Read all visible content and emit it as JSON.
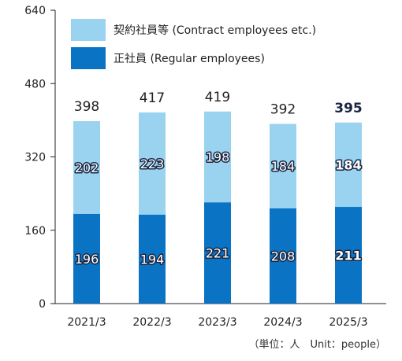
{
  "colors": {
    "contract": "#99d3f0",
    "regular": "#0a73c4",
    "axis": "#222222",
    "label_outline": "#1a2540"
  },
  "chart_data": {
    "type": "bar",
    "stacked": true,
    "categories": [
      "2021/3",
      "2022/3",
      "2023/3",
      "2024/3",
      "2025/3"
    ],
    "series": [
      {
        "name": "正社員 (Regular employees)",
        "values": [
          196,
          194,
          221,
          208,
          211
        ]
      },
      {
        "name": "契約社員等 (Contract employees etc.)",
        "values": [
          202,
          223,
          198,
          184,
          184
        ]
      }
    ],
    "totals": [
      398,
      417,
      419,
      392,
      395
    ],
    "highlight_last": true,
    "ylim": [
      0,
      640
    ],
    "yticks": [
      0,
      160,
      320,
      480,
      640
    ],
    "grid": false,
    "legend_position": "top-left",
    "note": "（単位：人　Unit：people）",
    "xlabel": "",
    "ylabel": ""
  }
}
